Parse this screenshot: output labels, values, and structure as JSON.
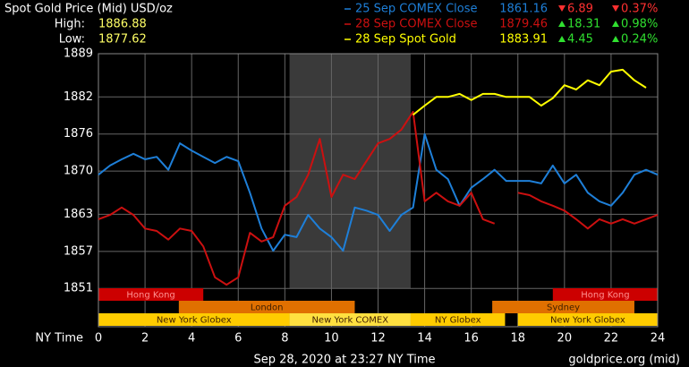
{
  "chart_data": {
    "type": "line",
    "title": "Spot Gold Price (Mid) USD/oz",
    "high_label": "High:",
    "high": 1886.88,
    "low_label": "Low:",
    "low": 1877.62,
    "xlabel": "NY Time",
    "timestamp": "Sep 28, 2020 at 23:27 NY Time",
    "source": "goldprice.org (mid)",
    "grid": true,
    "xlim": [
      0,
      24
    ],
    "xticks": [
      0,
      2,
      4,
      6,
      8,
      10,
      12,
      14,
      16,
      18,
      20,
      22,
      24
    ],
    "ylim": [
      1844.8,
      1889
    ],
    "yticks": [
      1889,
      1882,
      1876,
      1870,
      1863,
      1857,
      1851
    ],
    "x": [
      0,
      0.5,
      1,
      1.5,
      2,
      2.5,
      3,
      3.5,
      4,
      4.5,
      5,
      5.5,
      6,
      6.5,
      7,
      7.5,
      8,
      8.5,
      9,
      9.5,
      10,
      10.5,
      11,
      11.5,
      12,
      12.5,
      13,
      13.5,
      14,
      14.5,
      15,
      15.5,
      16,
      16.5,
      17,
      17.5,
      18,
      18.5,
      19,
      19.5,
      20,
      20.5,
      21,
      21.5,
      22,
      22.5,
      23,
      23.5,
      24
    ],
    "series": [
      {
        "name": "25 Sep COMEX Close",
        "color": "#1e7fd8",
        "price": 1861.16,
        "change": "6.89",
        "change_pct": "0.37%",
        "direction": "down",
        "values": [
          1869.4,
          1870.9,
          1871.9,
          1872.8,
          1871.9,
          1872.3,
          1870.2,
          1874.5,
          1873.3,
          1872.3,
          1871.3,
          1872.3,
          1871.6,
          1866.5,
          1860.7,
          1857.1,
          1859.7,
          1859.3,
          1862.9,
          1860.7,
          1859.3,
          1857.1,
          1864.1,
          1863.6,
          1862.9,
          1860.3,
          1862.9,
          1864.1,
          1876.0,
          1870.2,
          1868.7,
          1864.4,
          1867.3,
          1868.7,
          1870.2,
          1868.4,
          1868.4,
          1868.4,
          1868.0,
          1870.9,
          1868.0,
          1869.4,
          1866.5,
          1865.1,
          1864.4,
          1866.5,
          1869.4,
          1870.2,
          1869.4
        ]
      },
      {
        "name": "28 Sep COMEX Close",
        "color": "#cc1010",
        "price": 1879.46,
        "change": "18.31",
        "change_pct": "0.98%",
        "direction": "up",
        "values": [
          1862.2,
          1862.9,
          1864.1,
          1862.9,
          1860.7,
          1860.3,
          1858.9,
          1860.7,
          1860.3,
          1857.8,
          1852.8,
          1851.6,
          1852.8,
          1860.0,
          1858.6,
          1859.3,
          1864.4,
          1865.8,
          1869.4,
          1875.2,
          1865.8,
          1869.4,
          1868.7,
          1871.6,
          1874.5,
          1875.2,
          1876.7,
          1879.6,
          1865.1,
          1866.5,
          1865.1,
          1864.4,
          1866.5,
          1862.2,
          1861.5,
          null,
          1866.5,
          1866.1,
          1865.1,
          1864.4,
          1863.6,
          1862.2,
          1860.7,
          1862.2,
          1861.5,
          1862.2,
          1861.5,
          1862.2,
          1862.9
        ]
      },
      {
        "name": "28 Sep Spot Gold",
        "color": "#ffff00",
        "price": 1883.91,
        "change": "4.45",
        "change_pct": "0.24%",
        "direction": "up",
        "values": [
          null,
          null,
          null,
          null,
          null,
          null,
          null,
          null,
          null,
          null,
          null,
          null,
          null,
          null,
          null,
          null,
          null,
          null,
          null,
          null,
          null,
          null,
          null,
          null,
          null,
          null,
          null,
          1879.1,
          1880.6,
          1882.0,
          1882.0,
          1882.5,
          1881.5,
          1882.5,
          1882.5,
          1882.0,
          1882.0,
          1882.0,
          1880.6,
          1881.8,
          1883.9,
          1883.2,
          1884.7,
          1883.9,
          1886.1,
          1886.4,
          1884.7,
          1883.5,
          null
        ]
      }
    ],
    "sessions": [
      [
        {
          "name": "Hong Kong",
          "start": 0,
          "end": 4.5,
          "color": "#cc0000"
        },
        {
          "name": "Hong Kong",
          "start": 19.5,
          "end": 24,
          "color": "#cc0000"
        }
      ],
      [
        {
          "name": "London",
          "start": 3.45,
          "end": 11,
          "color": "#e07000"
        },
        {
          "name": "Sydney",
          "start": 16.9,
          "end": 23,
          "color": "#e07000"
        }
      ],
      [
        {
          "name": "New York Globex",
          "start": 0,
          "end": 8.2,
          "color": "#ffcc00"
        },
        {
          "name": "New York COMEX",
          "start": 8.2,
          "end": 13.4,
          "color": "#ffe040",
          "shade": true
        },
        {
          "name": "NY Globex",
          "start": 13.4,
          "end": 17.45,
          "color": "#ffcc00"
        },
        {
          "name": "New York Globex",
          "start": 18,
          "end": 24,
          "color": "#ffcc00"
        }
      ]
    ]
  }
}
